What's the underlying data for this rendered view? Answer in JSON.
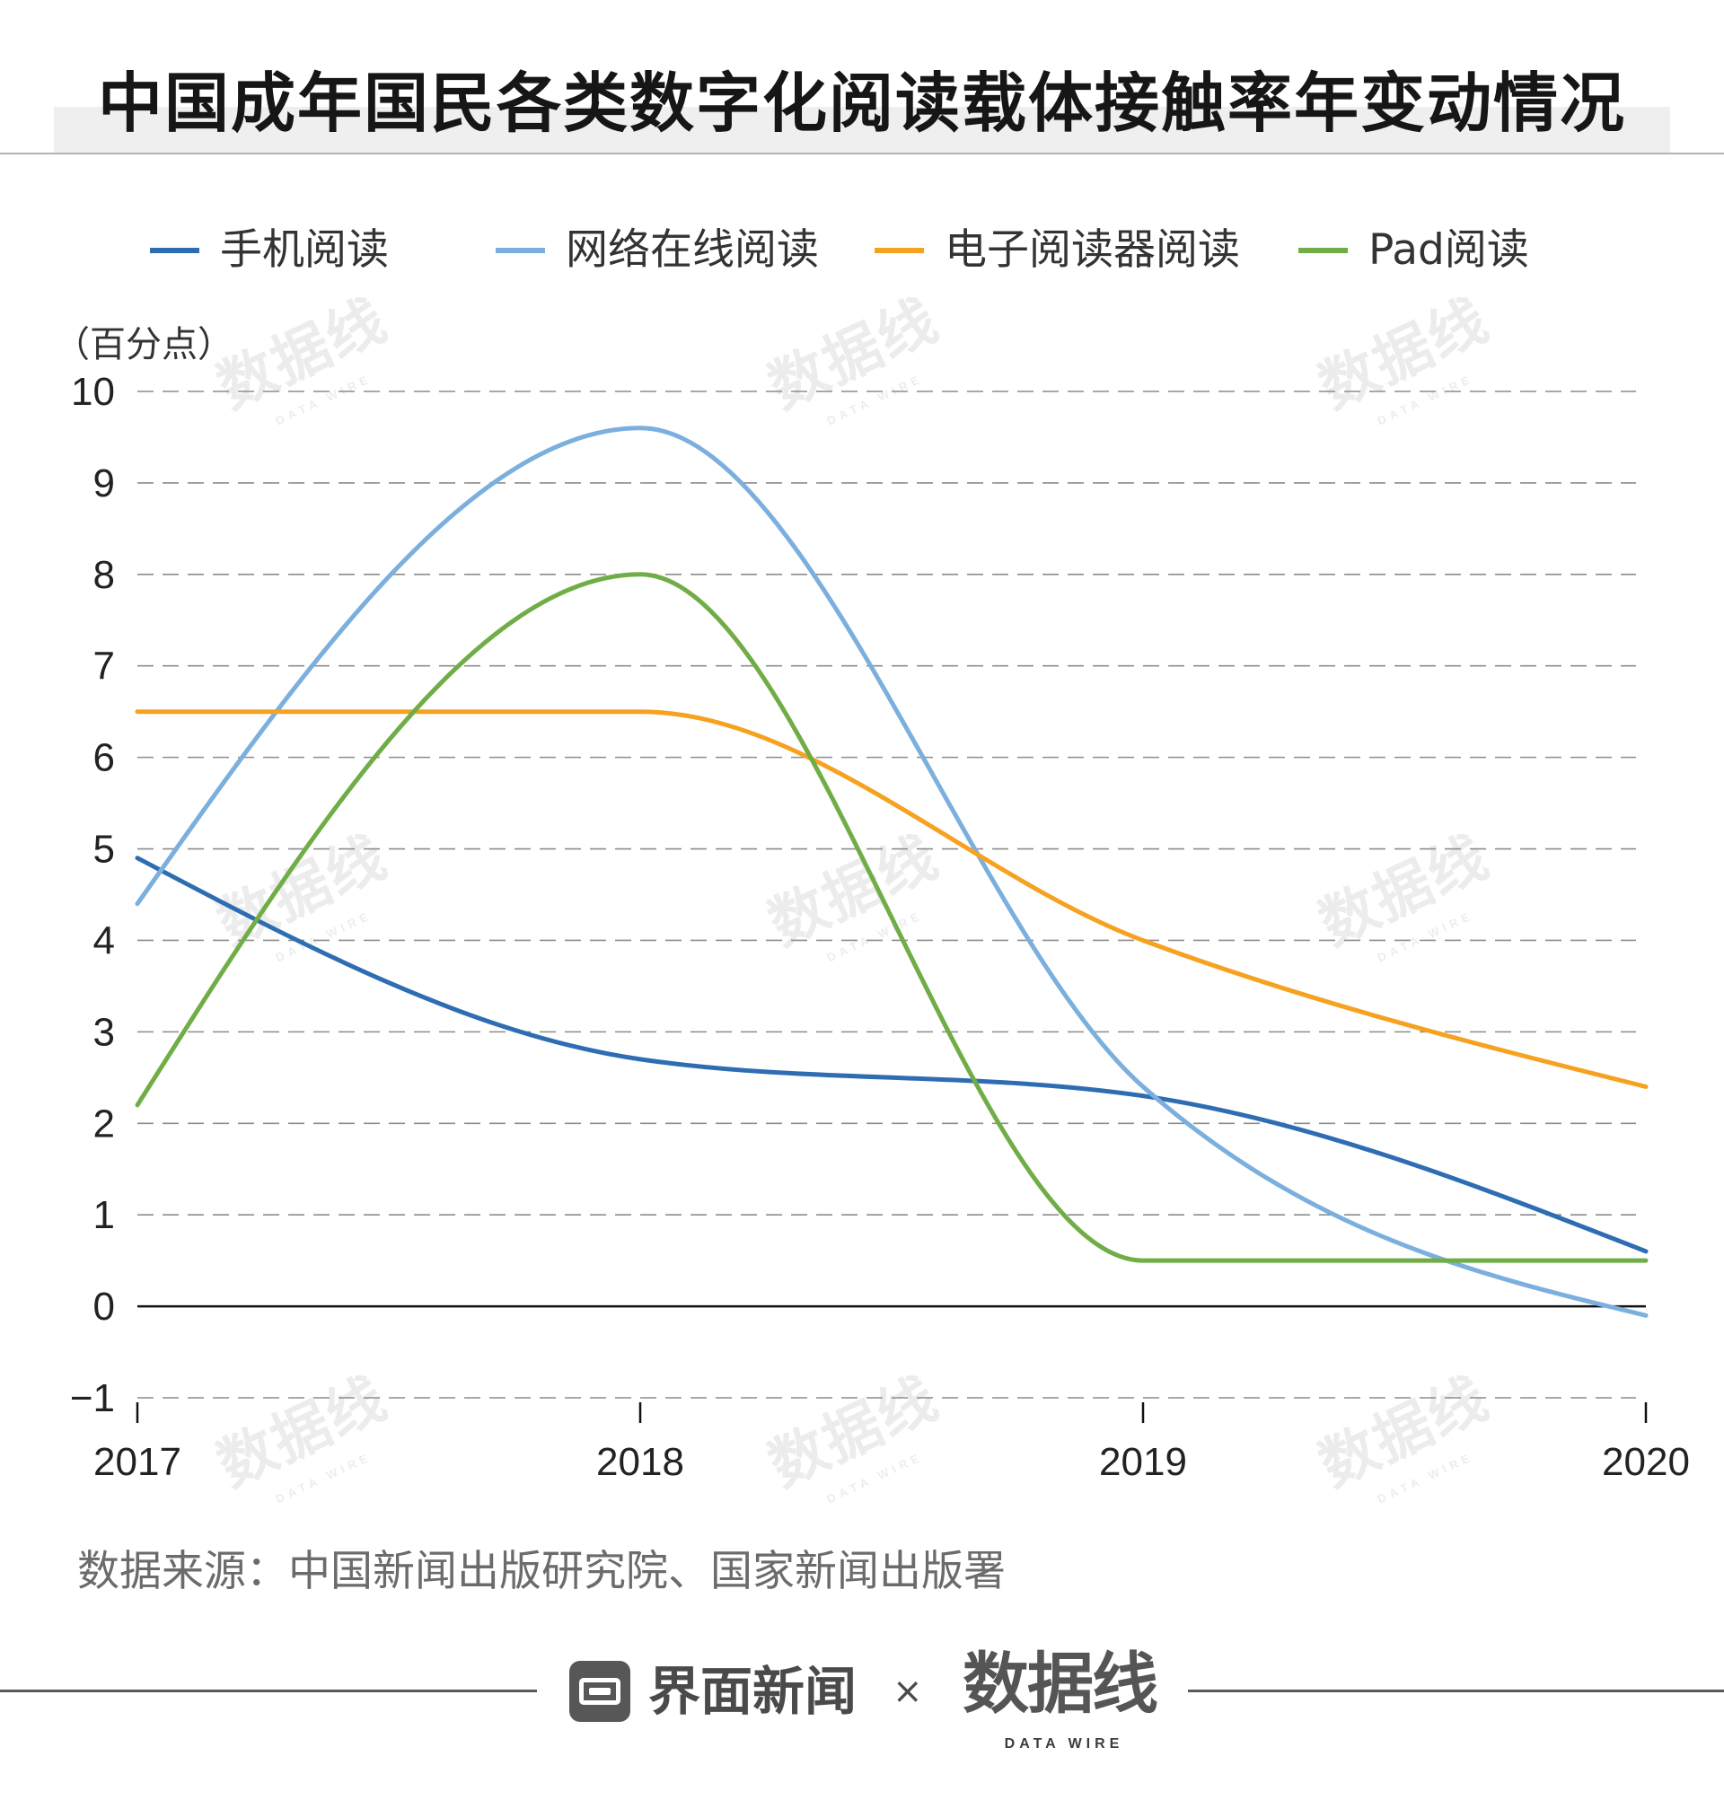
{
  "chart_data": {
    "type": "line",
    "smooth": true,
    "title": "中国成年国民各类数字化阅读载体接触率年变动情况",
    "ylabel": "（百分点）",
    "categories": [
      "2017",
      "2018",
      "2019",
      "2020"
    ],
    "ylim": [
      -1,
      10
    ],
    "yticks": [
      10,
      9,
      8,
      7,
      6,
      5,
      4,
      3,
      2,
      1,
      0,
      -1
    ],
    "ytick_labels": [
      "10",
      "9",
      "8",
      "7",
      "6",
      "5",
      "4",
      "3",
      "2",
      "1",
      "0",
      "−1"
    ],
    "grid": true,
    "legend": "top",
    "series": [
      {
        "name": "手机阅读",
        "color": "#2f6db3",
        "values": [
          4.9,
          2.7,
          2.3,
          0.6
        ]
      },
      {
        "name": "网络在线阅读",
        "color": "#7bafdd",
        "values": [
          4.4,
          9.6,
          2.4,
          -0.1
        ]
      },
      {
        "name": "电子阅读器阅读",
        "color": "#f6a220",
        "values": [
          6.5,
          6.5,
          4.0,
          2.4
        ]
      },
      {
        "name": "Pad阅读",
        "color": "#70ad47",
        "values": [
          2.2,
          8.0,
          0.5,
          0.5
        ]
      }
    ]
  },
  "source": "数据来源：中国新闻出版研究院、国家新闻出版署",
  "footer": {
    "brand": "界面新闻",
    "separator": "×",
    "partner": "数据线",
    "partner_tagline": "DATA WIRE"
  },
  "watermark": {
    "text": "数据线",
    "tagline": "DATA WIRE"
  }
}
